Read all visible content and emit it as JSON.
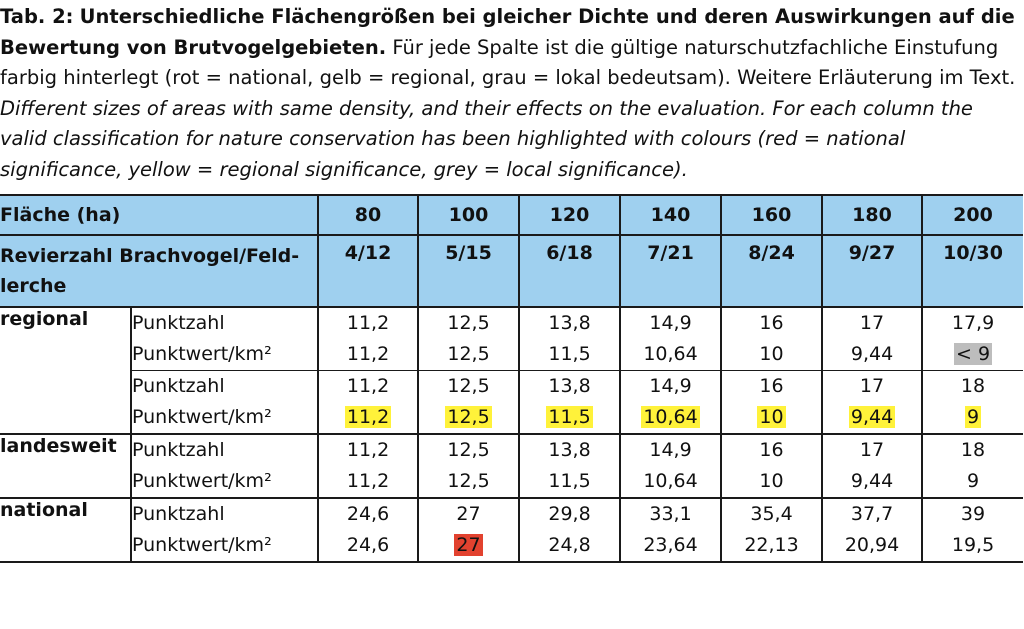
{
  "caption": {
    "tab_label": "Tab. 2:",
    "title_bold": "Unterschiedliche Flächengrößen bei gleicher Dichte und deren Auswirkungen auf die Bewertung von Brutvogelgebieten.",
    "de_text": "Für jede Spalte ist die gültige naturschutzfachliche Einstufung farbig hinterlegt (rot = national, gelb = regional, grau = lokal bedeutsam). Weitere Erläuterung im Text.",
    "en_text": "Different sizes of areas with same density, and their effects on the evaluation. For each column the valid classification for nature conservation has been highlighted with colours (red = national significance, yellow = regional significance, grey = local significance)."
  },
  "colors": {
    "header_bg": "#9fd0ef",
    "national": "#e2422f",
    "regional": "#fff23a",
    "local": "#bdbdbd"
  },
  "header": {
    "flaeche_label": "Fläche (ha)",
    "areas": [
      "80",
      "100",
      "120",
      "140",
      "160",
      "180",
      "200"
    ],
    "revier_label": "Revierzahl Brachvogel/Feld-lerche",
    "reviere": [
      "4/12",
      "5/15",
      "6/18",
      "7/21",
      "8/24",
      "9/27",
      "10/30"
    ]
  },
  "labels": {
    "punktzahl": "Punktzahl",
    "punktwert": "Punktwert/km²"
  },
  "rows": {
    "regional_a": {
      "category": "regional",
      "punktzahl": [
        "11,2",
        "12,5",
        "13,8",
        "14,9",
        "16",
        "17",
        "17,9"
      ],
      "punktwert": [
        "11,2",
        "12,5",
        "11,5",
        "10,64",
        "10",
        "9,44",
        "< 9"
      ]
    },
    "regional_b": {
      "punktzahl": [
        "11,2",
        "12,5",
        "13,8",
        "14,9",
        "16",
        "17",
        "18"
      ],
      "punktwert": [
        "11,2",
        "12,5",
        "11,5",
        "10,64",
        "10",
        "9,44",
        "9"
      ]
    },
    "landesweit": {
      "category": "landesweit",
      "punktzahl": [
        "11,2",
        "12,5",
        "13,8",
        "14,9",
        "16",
        "17",
        "18"
      ],
      "punktwert": [
        "11,2",
        "12,5",
        "11,5",
        "10,64",
        "10",
        "9,44",
        "9"
      ]
    },
    "national": {
      "category": "national",
      "punktzahl": [
        "24,6",
        "27",
        "29,8",
        "33,1",
        "35,4",
        "37,7",
        "39"
      ],
      "punktwert": [
        "24,6",
        "27",
        "24,8",
        "23,64",
        "22,13",
        "20,94",
        "19,5"
      ]
    }
  }
}
